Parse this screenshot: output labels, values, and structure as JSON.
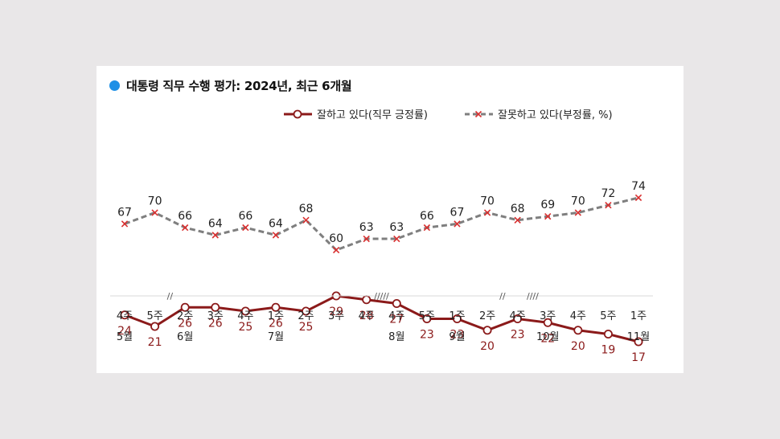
{
  "chart_data": {
    "type": "line",
    "title": "대통령 직무 수행 평가: 2024년, 최근 6개월",
    "categories": [
      "4주",
      "5주",
      "2주",
      "3주",
      "4주",
      "1주",
      "2주",
      "3주",
      "4주",
      "4주",
      "5주",
      "1주",
      "2주",
      "4주",
      "3주",
      "4주",
      "5주",
      "1주"
    ],
    "months": [
      {
        "index": 0,
        "label": "5월"
      },
      {
        "index": 2,
        "label": "6월"
      },
      {
        "index": 5,
        "label": "7월"
      },
      {
        "index": 9,
        "label": "8월"
      },
      {
        "index": 11,
        "label": "9월"
      },
      {
        "index": 14,
        "label": "10월"
      },
      {
        "index": 17,
        "label": "11월"
      }
    ],
    "breaks": [
      {
        "after": 1,
        "mark": "//"
      },
      {
        "after": 8,
        "mark": "/////"
      },
      {
        "after": 12,
        "mark": "//"
      },
      {
        "after": 13,
        "mark": "////"
      }
    ],
    "series": [
      {
        "name": "잘하고 있다(직무 긍정률)",
        "color": "#8b1a1a",
        "style": "solid",
        "marker": "circle",
        "values": [
          24,
          21,
          26,
          26,
          25,
          26,
          25,
          29,
          28,
          27,
          23,
          23,
          20,
          23,
          22,
          20,
          19,
          17
        ]
      },
      {
        "name": "잘못하고 있다(부정률, %)",
        "color": "#7f7f7f",
        "style": "dashed",
        "marker": "x",
        "values": [
          67,
          70,
          66,
          64,
          66,
          64,
          68,
          60,
          63,
          63,
          66,
          67,
          70,
          68,
          69,
          70,
          72,
          74
        ]
      }
    ],
    "ylim": [
      0,
      100
    ],
    "grid": false,
    "legend_position": "top-right"
  }
}
